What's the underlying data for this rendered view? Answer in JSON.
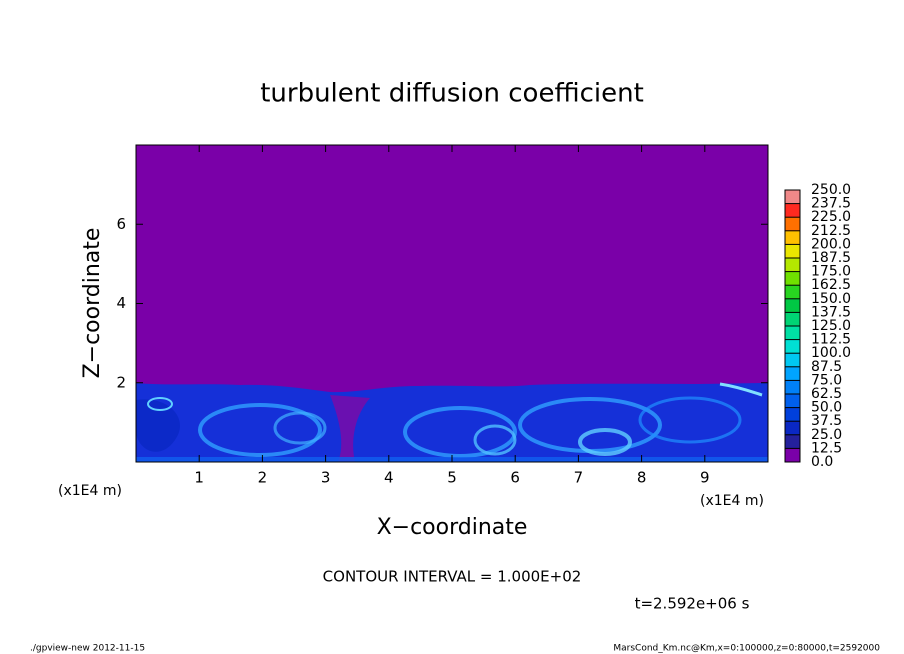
{
  "chart_data": {
    "type": "heatmap",
    "title": "turbulent diffusion coefficient",
    "x_label": "X−coordinate",
    "y_label": "Z−coordinate",
    "x_unit": "(x1E4 m)",
    "y_unit": "(x1E4 m)",
    "xlim": [
      0,
      10
    ],
    "ylim": [
      0,
      8
    ],
    "xticks": [
      1,
      2,
      3,
      4,
      5,
      6,
      7,
      8,
      9
    ],
    "yticks": [
      2,
      4,
      6
    ],
    "background_color": "#7a00a8",
    "colorbar": {
      "lim": [
        0,
        250
      ],
      "ticks": [
        {
          "value": 0,
          "label": "0.0"
        },
        12.5,
        {
          "value": 25,
          "label": "25.0"
        },
        37.5,
        {
          "value": 50,
          "label": "50.0"
        },
        62.5,
        {
          "value": 75,
          "label": "75.0"
        },
        87.5,
        {
          "value": 100,
          "label": "100.0"
        },
        112.5,
        {
          "value": 125,
          "label": "125.0"
        },
        137.5,
        {
          "value": 150,
          "label": "150.0"
        },
        162.5,
        {
          "value": 175,
          "label": "175.0"
        },
        187.5,
        {
          "value": 200,
          "label": "200.0"
        },
        212.5,
        {
          "value": 225,
          "label": "225.0"
        },
        237.5,
        {
          "value": 250,
          "label": "250.0"
        }
      ],
      "colors": [
        "#7a00a8",
        "#24209c",
        "#0a28c4",
        "#0040dc",
        "#0060ee",
        "#0080f8",
        "#00a4ff",
        "#00c8f2",
        "#00e0d4",
        "#00e0a4",
        "#00d474",
        "#00c844",
        "#28d420",
        "#70e000",
        "#b4e800",
        "#eae600",
        "#ffc000",
        "#ff7000",
        "#ff2a20",
        "#f08888"
      ]
    },
    "annotation": "CONTOUR INTERVAL = 1.000E+02",
    "time_label": "t=2.592e+06 s",
    "footer_left": "./gpview-new  2012-11-15",
    "footer_right": "MarsCond_Km.nc@Km,x=0:100000,z=0:80000,t=2592000"
  }
}
